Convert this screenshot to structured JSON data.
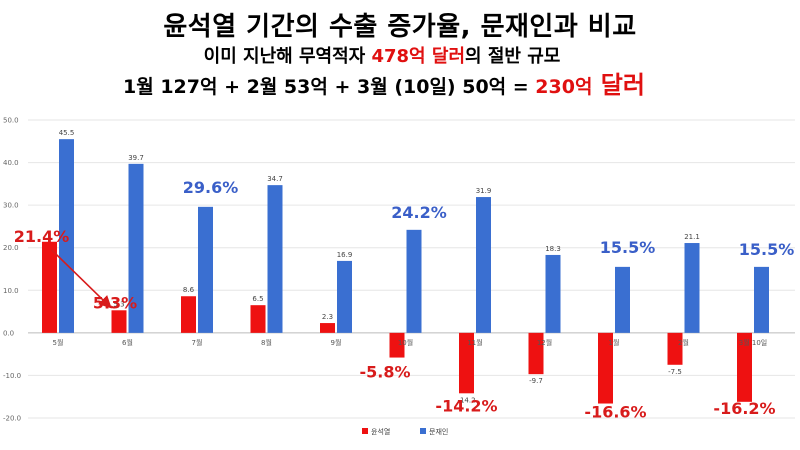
{
  "header": {
    "title": "윤석열 기간의 수출 증가율, 문재인과 비교",
    "sub1_pre": "이미 지난해 무역적자 ",
    "sub1_red": "478억 달러",
    "sub1_post": "의 절반 규모",
    "sub2_pre": "1월 127억 + 2월 53억 + 3월 (10일) 50억 = ",
    "sub2_red1": "230억",
    "sub2_red2": " 달러"
  },
  "colors": {
    "yoon": "#ee1111",
    "moon": "#3a6fd1",
    "anno_red": "#d81b1b",
    "anno_blue": "#3a5fc8"
  },
  "chart_data": {
    "type": "bar",
    "categories": [
      "5월",
      "6월",
      "7월",
      "8월",
      "9월",
      "10월",
      "11월",
      "12월",
      "1월",
      "2월",
      "3월 10일"
    ],
    "series": [
      {
        "name": "윤석열",
        "values": [
          21.4,
          5.3,
          8.6,
          6.5,
          2.3,
          -5.8,
          -14.2,
          -9.7,
          -16.6,
          -7.5,
          -16.2
        ]
      },
      {
        "name": "문재인",
        "values": [
          45.5,
          39.7,
          29.6,
          34.7,
          16.9,
          24.2,
          31.9,
          18.3,
          15.5,
          21.1,
          15.5
        ]
      }
    ],
    "data_labels": {
      "윤석열": [
        "",
        "5.3",
        "8.6",
        "6.5",
        "2.3",
        "",
        "-14.2",
        "-9.7",
        "",
        "-7.5",
        ""
      ],
      "문재인": [
        "45.5",
        "39.7",
        "",
        "34.7",
        "16.9",
        "",
        "31.9",
        "18.3",
        "",
        "21.1",
        ""
      ]
    },
    "yticks": [
      "50.0",
      "40.0",
      "30.0",
      "20.0",
      "10.0",
      "0.0",
      "-10.0",
      "-20.0"
    ],
    "ylim": [
      -20,
      50
    ],
    "grid": true,
    "legend": "bottom-center",
    "annotations": [
      {
        "text": "21.4%",
        "category": 0,
        "value": 21.4,
        "color": "red"
      },
      {
        "text": "5.3%",
        "category": 1,
        "value": 5.3,
        "color": "red"
      },
      {
        "text": "29.6%",
        "category": 2,
        "value": 29.6,
        "color": "blue"
      },
      {
        "text": "24.2%",
        "category": 5,
        "value": 24.2,
        "color": "blue"
      },
      {
        "text": "-5.8%",
        "category": 5,
        "value": -5.8,
        "color": "red"
      },
      {
        "text": "15.5%",
        "category": 8,
        "value": 15.5,
        "color": "blue"
      },
      {
        "text": "-14.2%",
        "category": 6,
        "value": -14.2,
        "color": "red"
      },
      {
        "text": "-16.6%",
        "category": 8,
        "value": -16.6,
        "color": "red"
      },
      {
        "text": "15.5%",
        "category": 10,
        "value": 15.5,
        "color": "blue"
      },
      {
        "text": "-16.2%",
        "category": 10,
        "value": -16.2,
        "color": "red"
      }
    ]
  }
}
